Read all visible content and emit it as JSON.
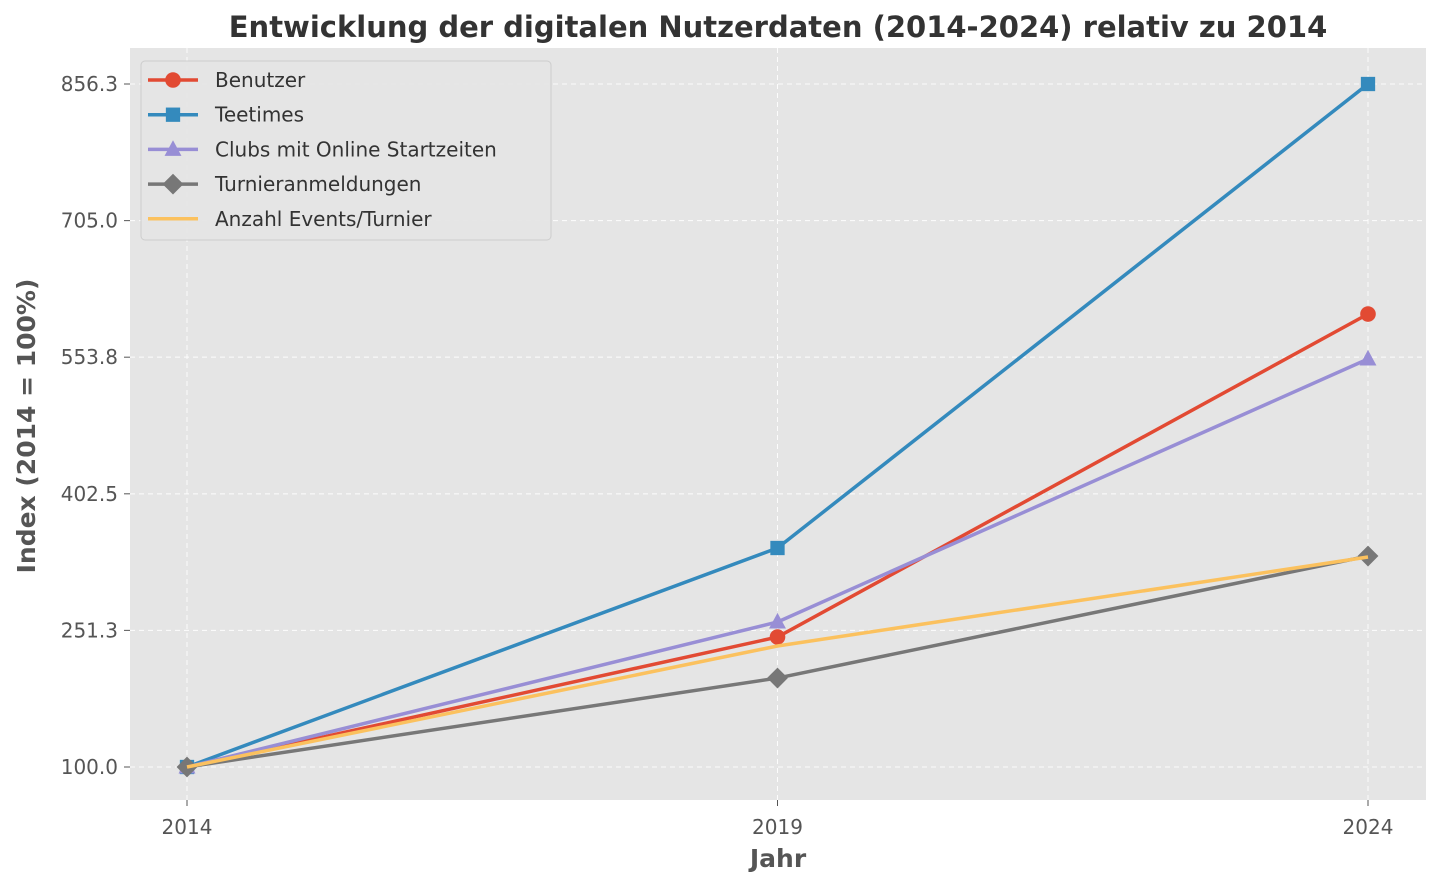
{
  "chart_data": {
    "type": "line",
    "title": "Entwicklung der digitalen Nutzerdaten (2014-2024) relativ zu 2014",
    "xlabel": "Jahr",
    "ylabel": "Index (2014 = 100%)",
    "x": [
      "2014",
      "2019",
      "2024"
    ],
    "yticks": [
      "100.0",
      "251.3",
      "402.5",
      "553.8",
      "705.0",
      "856.3"
    ],
    "ytick_values": [
      100.0,
      251.3,
      402.5,
      553.8,
      705.0,
      856.3
    ],
    "ylim": [
      70,
      886
    ],
    "grid": true,
    "legend_position": "top-left",
    "series": [
      {
        "name": "Benutzer",
        "values": [
          100.0,
          243.9,
          601.6
        ],
        "color": "#E24A33",
        "marker": "circle"
      },
      {
        "name": "Teetimes",
        "values": [
          100.0,
          342.5,
          856.3
        ],
        "color": "#348ABD",
        "marker": "square"
      },
      {
        "name": "Clubs mit Online Startzeiten",
        "values": [
          100.0,
          260.6,
          551.8
        ],
        "color": "#988ED5",
        "marker": "triangle"
      },
      {
        "name": "Turnieranmeldungen",
        "values": [
          100.0,
          198.5,
          333.6
        ],
        "color": "#777777",
        "marker": "diamond"
      },
      {
        "name": "Anzahl Events/Turnier",
        "values": [
          100.0,
          234.0,
          332.5
        ],
        "color": "#FBC15E",
        "marker": "none"
      }
    ]
  }
}
